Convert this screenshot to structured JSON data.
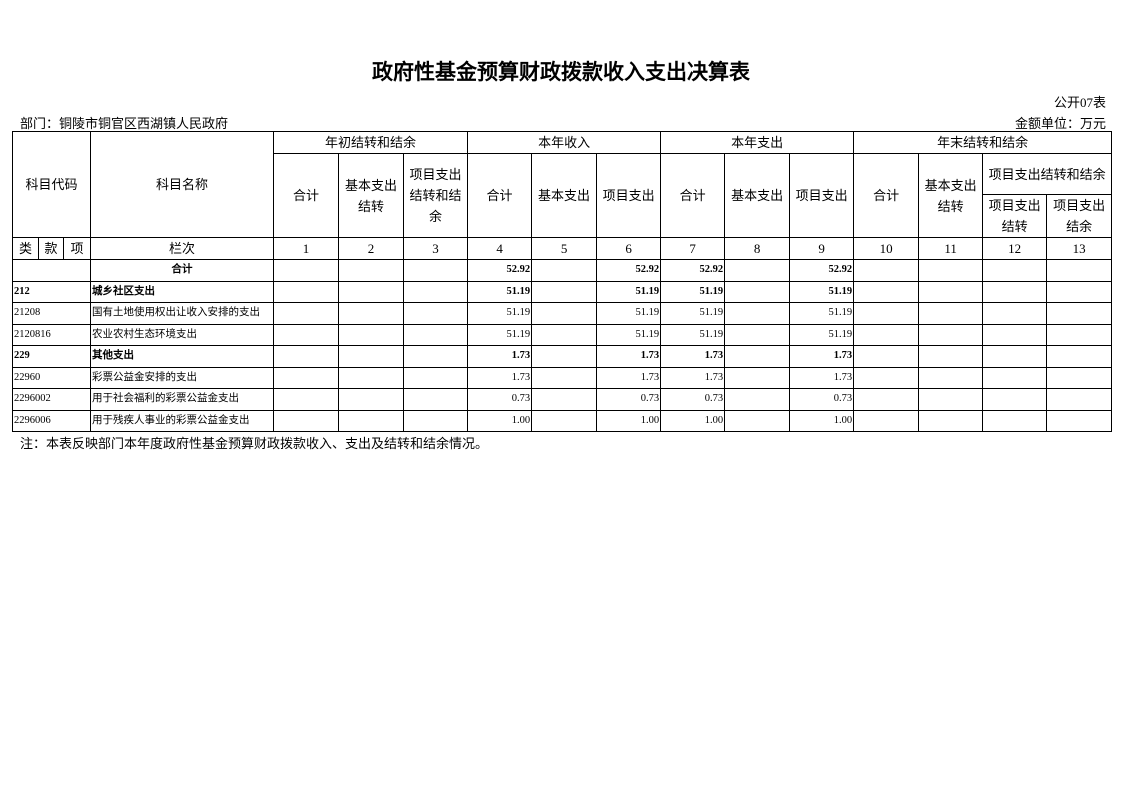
{
  "header": {
    "title": "政府性基金预算财政拨款收入支出决算表",
    "form_no": "公开07表",
    "department": "部门：铜陵市铜官区西湖镇人民政府",
    "unit": "金额单位：万元"
  },
  "table": {
    "code_header": "科目代码",
    "name_header": "科目名称",
    "code_parts": [
      "类",
      "款",
      "项"
    ],
    "row_number_label": "栏次",
    "groups": [
      {
        "label": "年初结转和结余",
        "columns": [
          "合计",
          "基本支出结转",
          "项目支出结转和结余"
        ]
      },
      {
        "label": "本年收入",
        "columns": [
          "合计",
          "基本支出",
          "项目支出"
        ]
      },
      {
        "label": "本年支出",
        "columns": [
          "合计",
          "基本支出",
          "项目支出"
        ]
      },
      {
        "label": "年末结转和结余",
        "columns": [
          "合计",
          "基本支出结转",
          {
            "label": "项目支出结转和结余",
            "columns": [
              "项目支出结转",
              "项目支出结余"
            ]
          }
        ]
      }
    ],
    "column_numbers": [
      1,
      2,
      3,
      4,
      5,
      6,
      7,
      8,
      9,
      10,
      11,
      12,
      13
    ],
    "rows": [
      {
        "code": null,
        "name": "合计",
        "values": [
          null,
          null,
          null,
          "52.92",
          null,
          "52.92",
          "52.92",
          null,
          "52.92",
          null,
          null,
          null,
          null
        ]
      },
      {
        "code": "212",
        "name": "城乡社区支出",
        "values": [
          null,
          null,
          null,
          "51.19",
          null,
          "51.19",
          "51.19",
          null,
          "51.19",
          null,
          null,
          null,
          null
        ]
      },
      {
        "code": "21208",
        "name": "国有土地使用权出让收入安排的支出",
        "values": [
          null,
          null,
          null,
          "51.19",
          null,
          "51.19",
          "51.19",
          null,
          "51.19",
          null,
          null,
          null,
          null
        ]
      },
      {
        "code": "2120816",
        "name": "农业农村生态环境支出",
        "values": [
          null,
          null,
          null,
          "51.19",
          null,
          "51.19",
          "51.19",
          null,
          "51.19",
          null,
          null,
          null,
          null
        ]
      },
      {
        "code": "229",
        "name": "其他支出",
        "values": [
          null,
          null,
          null,
          "1.73",
          null,
          "1.73",
          "1.73",
          null,
          "1.73",
          null,
          null,
          null,
          null
        ]
      },
      {
        "code": "22960",
        "name": "彩票公益金安排的支出",
        "values": [
          null,
          null,
          null,
          "1.73",
          null,
          "1.73",
          "1.73",
          null,
          "1.73",
          null,
          null,
          null,
          null
        ]
      },
      {
        "code": "2296002",
        "name": "用于社会福利的彩票公益金支出",
        "values": [
          null,
          null,
          null,
          "0.73",
          null,
          "0.73",
          "0.73",
          null,
          "0.73",
          null,
          null,
          null,
          null
        ]
      },
      {
        "code": "2296006",
        "name": "用于残疾人事业的彩票公益金支出",
        "values": [
          null,
          null,
          null,
          "1.00",
          null,
          "1.00",
          "1.00",
          null,
          "1.00",
          null,
          null,
          null,
          null
        ]
      }
    ]
  },
  "note": "注：本表反映部门本年度政府性基金预算财政拨款收入、支出及结转和结余情况。"
}
